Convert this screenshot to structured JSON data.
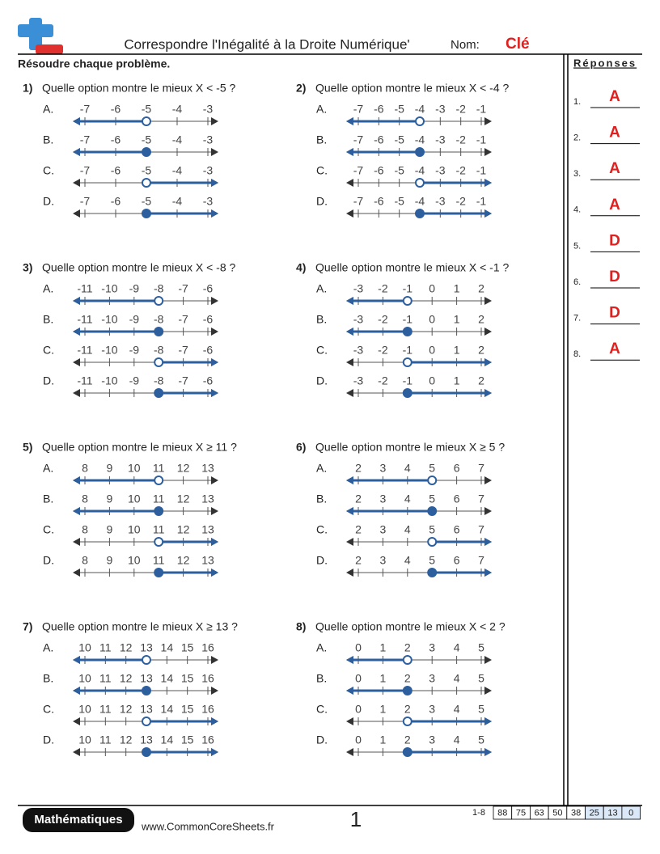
{
  "header": {
    "title": "Correspondre l'Inégalité à la Droite Numérique'",
    "name_label": "Nom:",
    "name_value": "Clé"
  },
  "instructions": "Résoudre chaque problème.",
  "answers_title": "Réponses",
  "problems": [
    {
      "number": "1)",
      "question": "Quelle option montre le mieux X < -5 ?",
      "options": [
        "A.",
        "B.",
        "C.",
        "D."
      ],
      "ticks": [
        "-7",
        "-6",
        "-5",
        "-4",
        "-3"
      ]
    },
    {
      "number": "2)",
      "question": "Quelle option montre le mieux X < -4 ?",
      "options": [
        "A.",
        "B.",
        "C.",
        "D."
      ],
      "ticks": [
        "-7",
        "-6",
        "-5",
        "-4",
        "-3",
        "-2",
        "-1"
      ]
    },
    {
      "number": "3)",
      "question": "Quelle option montre le mieux X < -8 ?",
      "options": [
        "A.",
        "B.",
        "C.",
        "D."
      ],
      "ticks": [
        "-11",
        "-10",
        "-9",
        "-8",
        "-7",
        "-6"
      ]
    },
    {
      "number": "4)",
      "question": "Quelle option montre le mieux X < -1 ?",
      "options": [
        "A.",
        "B.",
        "C.",
        "D."
      ],
      "ticks": [
        "-3",
        "-2",
        "-1",
        "0",
        "1",
        "2"
      ]
    },
    {
      "number": "5)",
      "question": "Quelle option montre le mieux X ≥ 11 ?",
      "options": [
        "A.",
        "B.",
        "C.",
        "D."
      ],
      "ticks": [
        "8",
        "9",
        "10",
        "11",
        "12",
        "13"
      ]
    },
    {
      "number": "6)",
      "question": "Quelle option montre le mieux X ≥ 5 ?",
      "options": [
        "A.",
        "B.",
        "C.",
        "D."
      ],
      "ticks": [
        "2",
        "3",
        "4",
        "5",
        "6",
        "7"
      ]
    },
    {
      "number": "7)",
      "question": "Quelle option montre le mieux X ≥ 13 ?",
      "options": [
        "A.",
        "B.",
        "C.",
        "D."
      ],
      "ticks": [
        "10",
        "11",
        "12",
        "13",
        "14",
        "15",
        "16"
      ]
    },
    {
      "number": "8)",
      "question": "Quelle option montre le mieux X < 2 ?",
      "options": [
        "A.",
        "B.",
        "C.",
        "D."
      ],
      "ticks": [
        "0",
        "1",
        "2",
        "3",
        "4",
        "5"
      ]
    }
  ],
  "answers": [
    {
      "number": "1.",
      "value": "A"
    },
    {
      "number": "2.",
      "value": "A"
    },
    {
      "number": "3.",
      "value": "A"
    },
    {
      "number": "4.",
      "value": "A"
    },
    {
      "number": "5.",
      "value": "D"
    },
    {
      "number": "6.",
      "value": "D"
    },
    {
      "number": "7.",
      "value": "D"
    },
    {
      "number": "8.",
      "value": "A"
    }
  ],
  "footer": {
    "subject": "Mathématiques",
    "website": "www.CommonCoreSheets.fr",
    "page": "1",
    "score_range": "1-8",
    "scores": [
      "88",
      "75",
      "63",
      "50",
      "38",
      "25",
      "13",
      "0"
    ]
  }
}
